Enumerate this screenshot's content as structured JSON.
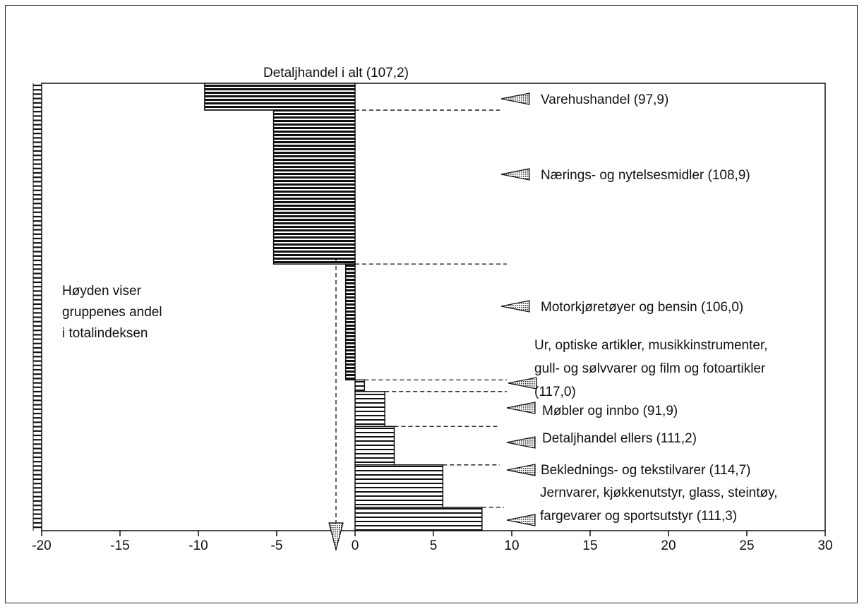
{
  "chart_data": {
    "type": "bar",
    "orientation": "horizontal",
    "title": "",
    "xlabel": "",
    "ylabel": "",
    "xlim": [
      -20,
      30
    ],
    "x_ticks": [
      "-20",
      "-15",
      "-10",
      "-5",
      "0",
      "5",
      "10",
      "15",
      "20",
      "25",
      "30"
    ],
    "grid": false,
    "note_lines": [
      "Høyden viser",
      "gruppenes andel",
      "i totalindeksen"
    ],
    "top_label": "Detaljhandel i alt (107,2)",
    "categories": [
      {
        "label_lines": [
          "Varehushandel (97,9)"
        ],
        "value": -9.6,
        "share": 0.06
      },
      {
        "label_lines": [
          "Nærings- og nytelsesmidler (108,9)"
        ],
        "value": -5.2,
        "share": 0.344
      },
      {
        "label_lines": [
          "Motorkjøretøyer og bensin (106,0)"
        ],
        "value": -0.6,
        "share": 0.259
      },
      {
        "label_lines": [
          "Ur, optiske artikler, musikkinstrumenter,",
          "gull- og sølvvarer og film og fotoartikler",
          "(117,0)"
        ],
        "value": 0.6,
        "share": 0.026
      },
      {
        "label_lines": [
          "Møbler og innbo (91,9)"
        ],
        "value": 1.9,
        "share": 0.078
      },
      {
        "label_lines": [
          "Detaljhandel ellers (111,2)"
        ],
        "value": 2.5,
        "share": 0.086
      },
      {
        "label_lines": [
          "Beklednings- og tekstilvarer (114,7)"
        ],
        "value": 5.6,
        "share": 0.095
      },
      {
        "label_lines": [
          "Jernvarer, kjøkkenutstyr, glass, steintøy,",
          "fargevarer  og sportsutstyr (111,3)"
        ],
        "value": 8.1,
        "share": 0.052
      }
    ],
    "reference_arrow_value": -1.3
  }
}
